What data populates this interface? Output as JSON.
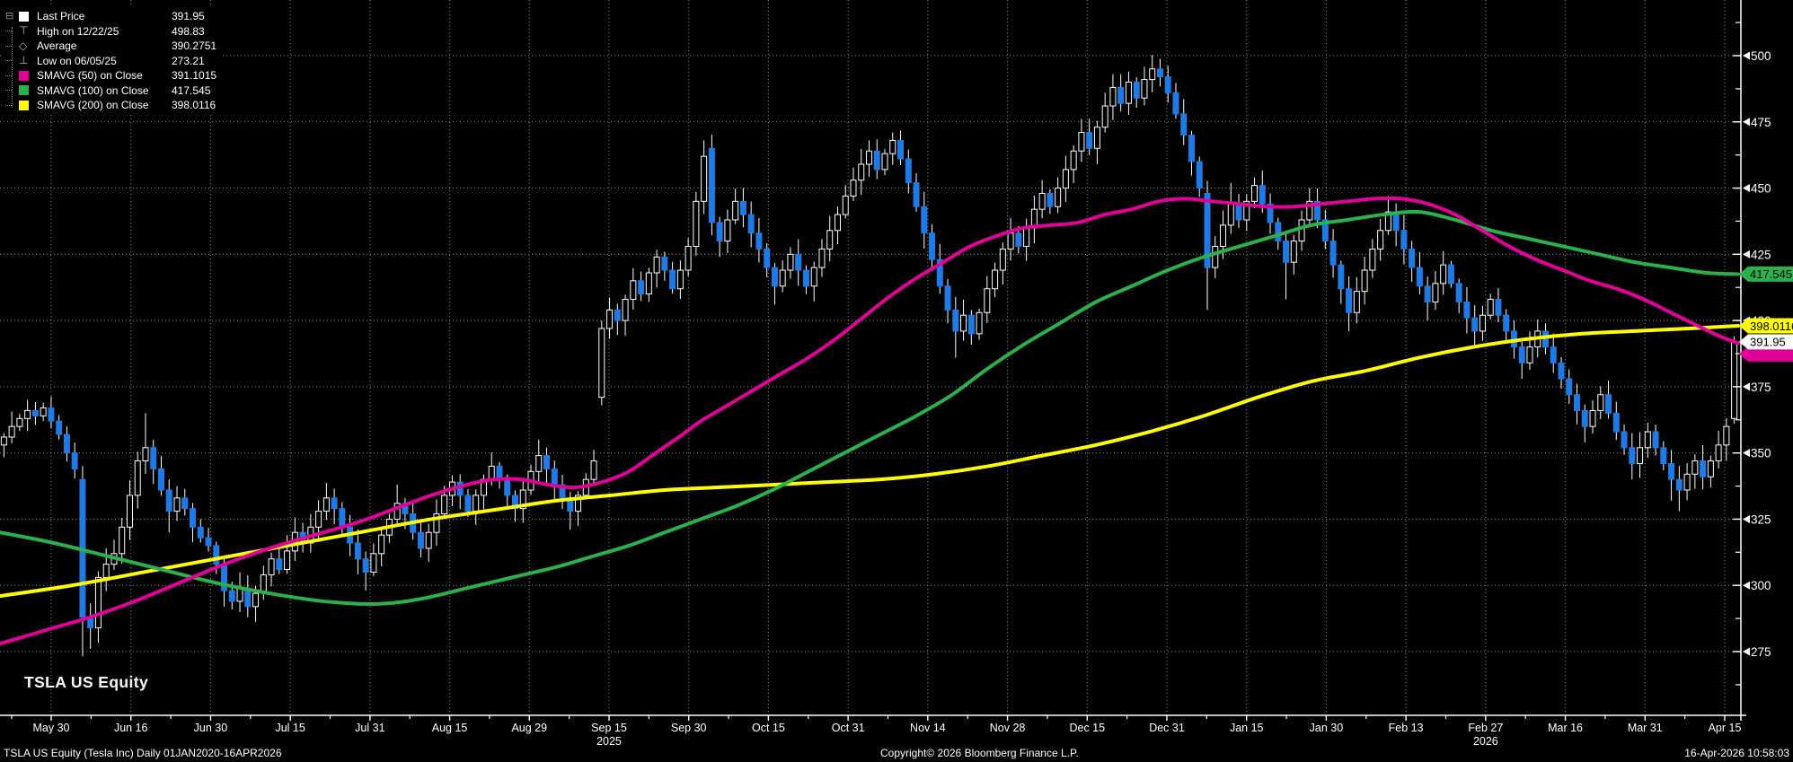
{
  "window": {
    "ticker_label": "TSLA US Equity"
  },
  "footer": {
    "left": "TSLA US Equity (Tesla Inc) Daily 01JAN2020-16APR2026",
    "center": "Copyright© 2026 Bloomberg Finance L.P.",
    "right": "16-Apr-2026 10:58:03"
  },
  "colors": {
    "background": "#000000",
    "up_candle": "#ffffff",
    "down_candle": "#1e7be6",
    "smavg50": "#e10098",
    "smavg100": "#2bb14c",
    "smavg200": "#ffff00",
    "grid": "#8a8a8a",
    "axis": "#ffffff"
  },
  "legend": {
    "items": [
      {
        "marker": "square",
        "color": "#ffffff",
        "label": "Last Price",
        "value": "391.95"
      },
      {
        "marker": "high",
        "color": "#b5b5b5",
        "label": "High on 12/22/25",
        "value": "498.83"
      },
      {
        "marker": "average",
        "color": "#b5b5b5",
        "label": "Average",
        "value": "390.2751"
      },
      {
        "marker": "low",
        "color": "#b5b5b5",
        "label": "Low on 06/05/25",
        "value": "273.21"
      },
      {
        "marker": "square",
        "color": "#e10098",
        "label": "SMAVG (50) on Close",
        "value": "391.1015"
      },
      {
        "marker": "square",
        "color": "#2bb14c",
        "label": "SMAVG (100) on Close",
        "value": "417.545"
      },
      {
        "marker": "square",
        "color": "#ffff00",
        "label": "SMAVG (200) on Close",
        "value": "398.0116"
      }
    ]
  },
  "chart_data": {
    "type": "candlestick",
    "title": "TSLA US Equity",
    "subtitle": "TSLA US Equity (Tesla Inc) Daily 01JAN2020-16APR2026",
    "ylim": [
      251,
      521
    ],
    "y_ticks": [
      500,
      475,
      450,
      425,
      400,
      375,
      350,
      325,
      300,
      275
    ],
    "y_minor_step": 12.5,
    "grid": true,
    "x_ticks": [
      "May 30",
      "Jun 16",
      "Jun 30",
      "Jul 15",
      "Jul 31",
      "Aug 15",
      "Aug 29",
      "Sep 15",
      "Sep 30",
      "Oct 15",
      "Oct 31",
      "Nov 14",
      "Nov 28",
      "Dec 15",
      "Dec 31",
      "Jan 15",
      "Jan 30",
      "Feb 13",
      "Feb 27",
      "Mar 16",
      "Mar 31",
      "Apr 15"
    ],
    "year_labels": [
      {
        "text": "2025",
        "tick_index": 7
      },
      {
        "text": "2026",
        "tick_index": 18
      }
    ],
    "key_points": {
      "last_price": 391.95,
      "high": {
        "date": "12/22/25",
        "value": 498.83
      },
      "average": 390.2751,
      "low": {
        "date": "06/05/25",
        "value": 273.21
      }
    },
    "axis_tags": [
      {
        "value": "417.545",
        "bg": "#2bb14c",
        "fg": "#000000",
        "price": 417.545
      },
      {
        "value": "398.0116",
        "bg": "#ffff00",
        "fg": "#000000",
        "price": 398.0116
      },
      {
        "value": "391.95",
        "bg": "#ffffff",
        "fg": "#000000",
        "price": 391.95,
        "under_bg": "#e10098",
        "under_price": 391.1015
      }
    ],
    "candles": {
      "closes": [
        356,
        360,
        363,
        366,
        364,
        367,
        362,
        357,
        350,
        344,
        288,
        284,
        303,
        308,
        312,
        322,
        334,
        347,
        352,
        344,
        336,
        328,
        333,
        329,
        322,
        318,
        315,
        308,
        298,
        294,
        299,
        292,
        297,
        304,
        310,
        306,
        313,
        320,
        316,
        322,
        328,
        333,
        329,
        322,
        316,
        310,
        305,
        312,
        319,
        325,
        331,
        327,
        320,
        314,
        320,
        327,
        334,
        339,
        334,
        328,
        334,
        340,
        345,
        340,
        334,
        329,
        336,
        343,
        349,
        344,
        338,
        333,
        328,
        334,
        340,
        347,
        397,
        404,
        400,
        408,
        415,
        410,
        418,
        424,
        419,
        412,
        419,
        428,
        445,
        462,
        437,
        430,
        438,
        445,
        440,
        433,
        427,
        420,
        413,
        419,
        425,
        419,
        413,
        420,
        427,
        434,
        440,
        447,
        453,
        459,
        464,
        457,
        463,
        468,
        461,
        452,
        443,
        433,
        423,
        413,
        404,
        396,
        402,
        395,
        403,
        412,
        419,
        427,
        433,
        428,
        435,
        442,
        448,
        443,
        450,
        457,
        464,
        471,
        465,
        473,
        481,
        488,
        482,
        490,
        484,
        491,
        495,
        492,
        486,
        478,
        470,
        460,
        450,
        420,
        428,
        436,
        444,
        438,
        445,
        451,
        444,
        437,
        430,
        422,
        430,
        438,
        445,
        438,
        430,
        421,
        412,
        403,
        411,
        419,
        427,
        434,
        441,
        434,
        427,
        420,
        413,
        407,
        414,
        421,
        414,
        407,
        401,
        396,
        402,
        408,
        402,
        396,
        390,
        384,
        390,
        396,
        390,
        384,
        378,
        372,
        366,
        360,
        366,
        372,
        365,
        358,
        352,
        346,
        352,
        358,
        352,
        346,
        340,
        336,
        342,
        347,
        341,
        347,
        353,
        360,
        391.95
      ],
      "open_overrides": {
        "0": 353,
        "10": 340,
        "76": 371,
        "90": 465,
        "153": 448,
        "220": 363
      },
      "high_overrides": {
        "5": 369,
        "10": 345,
        "18": 365,
        "50": 338,
        "68": 355,
        "76": 400,
        "89": 468,
        "110": 468,
        "113": 471,
        "140": 486,
        "143": 494,
        "147": 498.83,
        "156": 452,
        "166": 450,
        "176": 447,
        "220": 394
      },
      "low_overrides": {
        "10": 273.21,
        "11": 276,
        "21": 320,
        "28": 292,
        "31": 288,
        "46": 298,
        "72": 321,
        "76": 368,
        "91": 424,
        "98": 406,
        "121": 386,
        "153": 404,
        "163": 408,
        "171": 396,
        "181": 400,
        "193": 378,
        "201": 354,
        "207": 340,
        "212": 332,
        "213": 328,
        "220": 361
      }
    },
    "series": [
      {
        "name": "SMAVG (50) on Close",
        "color": "#e10098",
        "points": [
          [
            0,
            278
          ],
          [
            50,
            283
          ],
          [
            100,
            288
          ],
          [
            150,
            294
          ],
          [
            200,
            301
          ],
          [
            250,
            308
          ],
          [
            300,
            314
          ],
          [
            350,
            319
          ],
          [
            400,
            324
          ],
          [
            440,
            329
          ],
          [
            480,
            334
          ],
          [
            520,
            338
          ],
          [
            550,
            340
          ],
          [
            580,
            340
          ],
          [
            610,
            338
          ],
          [
            640,
            337
          ],
          [
            670,
            339
          ],
          [
            700,
            343
          ],
          [
            730,
            350
          ],
          [
            760,
            357
          ],
          [
            780,
            362
          ],
          [
            810,
            368
          ],
          [
            840,
            374
          ],
          [
            870,
            380
          ],
          [
            900,
            386
          ],
          [
            930,
            393
          ],
          [
            960,
            401
          ],
          [
            990,
            409
          ],
          [
            1020,
            416
          ],
          [
            1050,
            422
          ],
          [
            1080,
            428
          ],
          [
            1110,
            432
          ],
          [
            1140,
            435
          ],
          [
            1170,
            436
          ],
          [
            1200,
            437
          ],
          [
            1230,
            440
          ],
          [
            1260,
            442
          ],
          [
            1290,
            445
          ],
          [
            1320,
            446
          ],
          [
            1350,
            445
          ],
          [
            1380,
            444
          ],
          [
            1410,
            443
          ],
          [
            1440,
            443
          ],
          [
            1470,
            444
          ],
          [
            1500,
            445
          ],
          [
            1530,
            446
          ],
          [
            1560,
            446
          ],
          [
            1590,
            444
          ],
          [
            1620,
            440
          ],
          [
            1650,
            434
          ],
          [
            1680,
            428
          ],
          [
            1710,
            423
          ],
          [
            1740,
            419
          ],
          [
            1770,
            415
          ],
          [
            1800,
            412
          ],
          [
            1830,
            408
          ],
          [
            1860,
            403
          ],
          [
            1890,
            398
          ],
          [
            1915,
            394
          ],
          [
            1935,
            391.5
          ]
        ]
      },
      {
        "name": "SMAVG (100) on Close",
        "color": "#2bb14c",
        "points": [
          [
            0,
            320
          ],
          [
            60,
            316
          ],
          [
            120,
            311
          ],
          [
            180,
            306
          ],
          [
            240,
            301
          ],
          [
            300,
            297
          ],
          [
            360,
            294
          ],
          [
            420,
            293
          ],
          [
            470,
            295
          ],
          [
            520,
            299
          ],
          [
            570,
            303
          ],
          [
            620,
            307
          ],
          [
            660,
            311
          ],
          [
            700,
            315
          ],
          [
            740,
            320
          ],
          [
            780,
            325
          ],
          [
            820,
            330
          ],
          [
            860,
            336
          ],
          [
            900,
            343
          ],
          [
            940,
            350
          ],
          [
            980,
            357
          ],
          [
            1020,
            364
          ],
          [
            1060,
            372
          ],
          [
            1100,
            382
          ],
          [
            1140,
            391
          ],
          [
            1180,
            399
          ],
          [
            1220,
            407
          ],
          [
            1260,
            413
          ],
          [
            1300,
            419
          ],
          [
            1340,
            424
          ],
          [
            1380,
            428
          ],
          [
            1420,
            432
          ],
          [
            1460,
            436
          ],
          [
            1500,
            438
          ],
          [
            1540,
            440
          ],
          [
            1580,
            441
          ],
          [
            1620,
            438
          ],
          [
            1660,
            434
          ],
          [
            1700,
            431
          ],
          [
            1740,
            428
          ],
          [
            1780,
            425
          ],
          [
            1820,
            422
          ],
          [
            1860,
            420
          ],
          [
            1900,
            418
          ],
          [
            1935,
            417.5
          ]
        ]
      },
      {
        "name": "SMAVG (200) on Close",
        "color": "#ffff00",
        "points": [
          [
            0,
            296
          ],
          [
            80,
            300
          ],
          [
            160,
            305
          ],
          [
            240,
            310
          ],
          [
            320,
            315
          ],
          [
            400,
            320
          ],
          [
            480,
            325
          ],
          [
            560,
            329
          ],
          [
            620,
            332
          ],
          [
            680,
            334
          ],
          [
            740,
            336
          ],
          [
            800,
            337
          ],
          [
            860,
            338
          ],
          [
            920,
            339
          ],
          [
            980,
            340
          ],
          [
            1040,
            342
          ],
          [
            1100,
            345
          ],
          [
            1160,
            349
          ],
          [
            1220,
            353
          ],
          [
            1280,
            358
          ],
          [
            1340,
            364
          ],
          [
            1400,
            371
          ],
          [
            1460,
            377
          ],
          [
            1520,
            381
          ],
          [
            1580,
            386
          ],
          [
            1640,
            390
          ],
          [
            1700,
            393
          ],
          [
            1760,
            395
          ],
          [
            1820,
            396
          ],
          [
            1880,
            397
          ],
          [
            1935,
            398
          ]
        ]
      }
    ]
  }
}
